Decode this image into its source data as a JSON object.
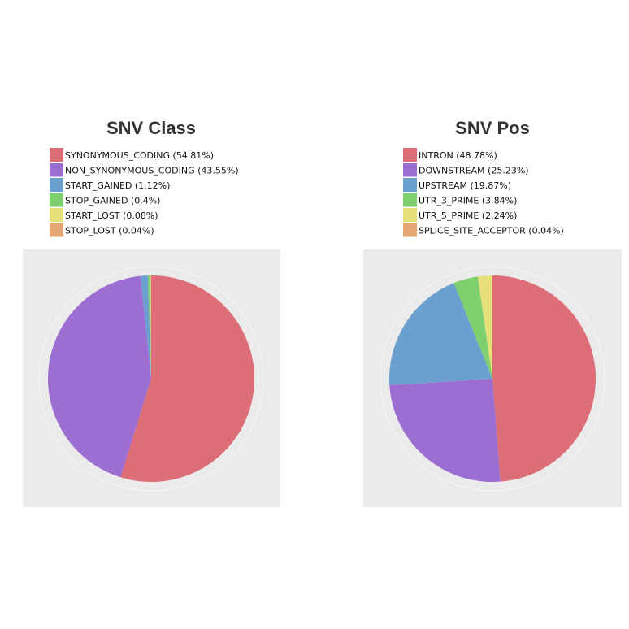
{
  "colors": {
    "panel_bg": "#ebebeb",
    "grid_ring": "#f7f7f7",
    "series": [
      "#dd6e78",
      "#9c6ed2",
      "#6b9fd0",
      "#7ecf6e",
      "#e5e07a",
      "#e4a672"
    ]
  },
  "chart_data": [
    {
      "type": "pie",
      "title": "SNV Class",
      "legend": "top",
      "categories": [
        "SYNONYMOUS_CODING",
        "NON_SYNONYMOUS_CODING",
        "START_GAINED",
        "STOP_GAINED",
        "START_LOST",
        "STOP_LOST"
      ],
      "values": [
        54.81,
        43.55,
        1.12,
        0.4,
        0.08,
        0.04
      ],
      "labels": [
        "SYNONYMOUS_CODING  (54.81%)",
        "NON_SYNONYMOUS_CODING  (43.55%)",
        "START_GAINED  (1.12%)",
        "STOP_GAINED  (0.4%)",
        "START_LOST  (0.08%)",
        "STOP_LOST  (0.04%)"
      ]
    },
    {
      "type": "pie",
      "title": "SNV Pos",
      "legend": "top",
      "categories": [
        "INTRON",
        "DOWNSTREAM",
        "UPSTREAM",
        "UTR_3_PRIME",
        "UTR_5_PRIME",
        "SPLICE_SITE_ACCEPTOR"
      ],
      "values": [
        48.78,
        25.23,
        19.87,
        3.84,
        2.24,
        0.04
      ],
      "labels": [
        "INTRON  (48.78%)",
        "DOWNSTREAM  (25.23%)",
        "UPSTREAM  (19.87%)",
        "UTR_3_PRIME  (3.84%)",
        "UTR_5_PRIME  (2.24%)",
        "SPLICE_SITE_ACCEPTOR  (0.04%)"
      ]
    }
  ]
}
